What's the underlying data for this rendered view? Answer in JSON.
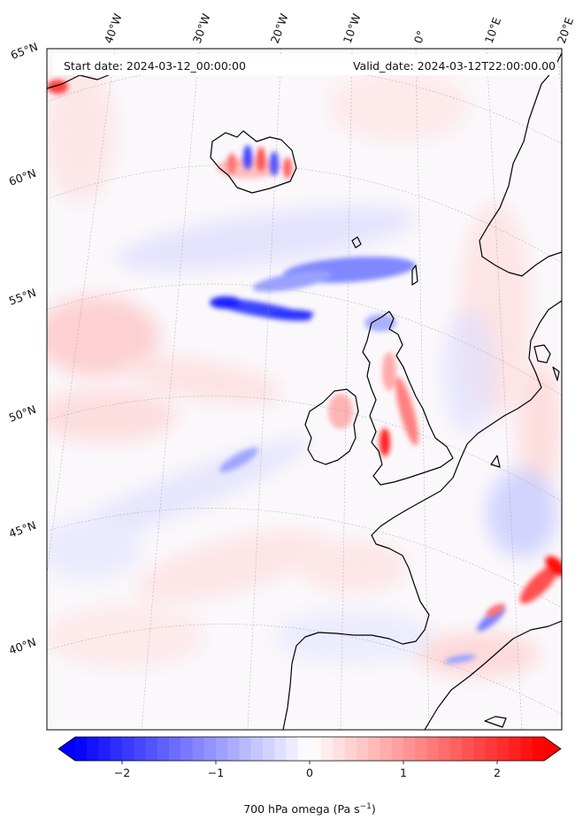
{
  "header": {
    "start_date": "Start date: 2024-03-12_00:00:00",
    "valid_date": "Valid_date: 2024-03-12T22:00:00.00"
  },
  "map": {
    "lon_labels": [
      "40°W",
      "30°W",
      "20°W",
      "10°W",
      "0°",
      "10°E",
      "20°E"
    ],
    "lat_labels": [
      "65°N",
      "60°N",
      "55°N",
      "50°N",
      "45°N",
      "40°N"
    ]
  },
  "colorbar": {
    "label_prefix": "700 hPa omega (Pa s",
    "label_exp": "−1",
    "label_suffix": ")",
    "ticks": [
      "−2",
      "−1",
      "0",
      "1",
      "2"
    ],
    "tick_values": [
      -2,
      -1,
      0,
      1,
      2
    ],
    "range": [
      -2.5,
      2.5
    ],
    "colors": {
      "low": "#0000ff",
      "mid": "#ffffff",
      "high": "#ff0000"
    }
  }
}
